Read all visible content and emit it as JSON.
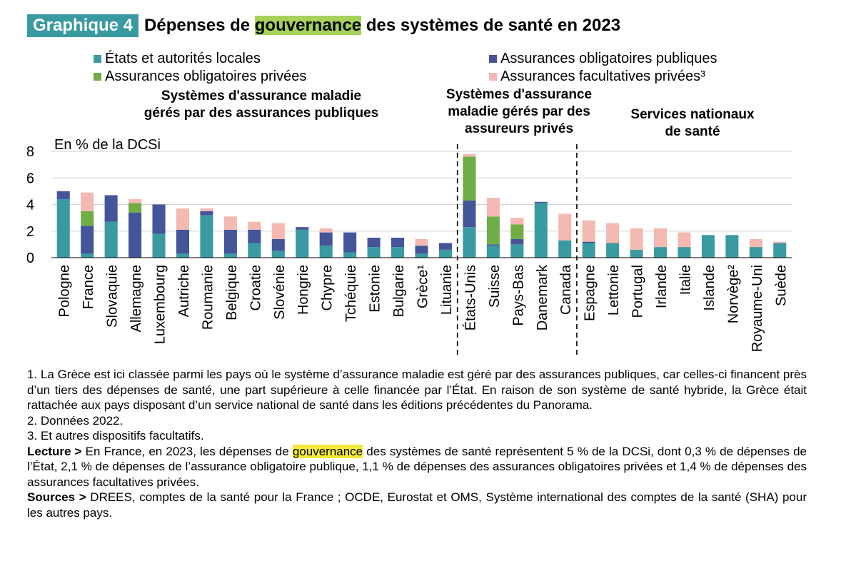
{
  "header": {
    "label": "Graphique 4",
    "title_before": "Dépenses de ",
    "title_highlight": "gouvernance",
    "title_after": " des systèmes de santé en 2023"
  },
  "colors": {
    "etats": "#3a9aa2",
    "obl_publiques": "#44559a",
    "obl_privees": "#70ad47",
    "facultatives": "#f4b9b2",
    "label_bg": "#3a9aa2",
    "title_highlight": "#a6d15a",
    "note_highlight": "#f5ea3b"
  },
  "chart_data": {
    "type": "bar",
    "stacked": true,
    "ylabel": "En % de la DCSi",
    "ylim": [
      0,
      8
    ],
    "yticks": [
      "0",
      "2",
      "4",
      "6",
      "8"
    ],
    "grid": true,
    "legend_position": "top",
    "groups": [
      {
        "title": [
          "Systèmes d'assurance maladie",
          "gérés par des assurances publiques"
        ]
      },
      {
        "title": [
          "Systèmes d'assurance",
          "maladie gérés par des",
          "assureurs privés"
        ]
      },
      {
        "title": [
          "Services nationaux",
          "de santé"
        ]
      }
    ],
    "categories": [
      "Pologne",
      "France",
      "Slovaquie",
      "Allemagne",
      "Luxembourg",
      "Autriche",
      "Roumanie",
      "Belgique",
      "Croatie",
      "Slovénie",
      "Hongrie",
      "Chypre",
      "Tchéquie",
      "Estonie",
      "Bulgarie",
      "Grèce¹",
      "Lituanie",
      "États-Unis",
      "Suisse",
      "Pays-Bas",
      "Danemark",
      "Canada",
      "Espagne",
      "Lettonie",
      "Portugal",
      "Irlande",
      "Italie",
      "Islande",
      "Norvège²",
      "Royaume-Uni",
      "Suède"
    ],
    "series": [
      {
        "name": "États et autorités locales",
        "values": [
          4.4,
          0.3,
          2.7,
          0.0,
          1.8,
          0.3,
          3.2,
          0.3,
          1.1,
          0.5,
          2.1,
          0.9,
          0.4,
          0.8,
          0.8,
          0.3,
          0.6,
          2.3,
          0.9,
          1.0,
          4.1,
          1.3,
          1.1,
          1.1,
          0.6,
          0.8,
          0.8,
          1.7,
          1.7,
          0.8,
          1.1
        ]
      },
      {
        "name": "Assurances obligatoires publiques",
        "values": [
          0.6,
          2.1,
          2.0,
          3.4,
          2.2,
          1.8,
          0.3,
          1.8,
          1.0,
          0.9,
          0.2,
          1.0,
          1.5,
          0.7,
          0.7,
          0.6,
          0.5,
          2.0,
          0.1,
          0.4,
          0.1,
          0.0,
          0.1,
          0.0,
          0.0,
          0.0,
          0.0,
          0.0,
          0.0,
          0.0,
          0.0
        ]
      },
      {
        "name": "Assurances obligatoires privées",
        "values": [
          0.0,
          1.1,
          0.0,
          0.7,
          0.0,
          0.0,
          0.0,
          0.0,
          0.0,
          0.0,
          0.0,
          0.0,
          0.0,
          0.0,
          0.0,
          0.0,
          0.0,
          3.3,
          2.1,
          1.1,
          0.0,
          0.0,
          0.0,
          0.0,
          0.0,
          0.0,
          0.0,
          0.0,
          0.0,
          0.0,
          0.0
        ]
      },
      {
        "name": "Assurances facultatives privées³",
        "values": [
          0.0,
          1.4,
          0.0,
          0.3,
          0.0,
          1.6,
          0.2,
          1.0,
          0.6,
          1.2,
          0.0,
          0.3,
          0.0,
          0.0,
          0.0,
          0.5,
          0.0,
          0.2,
          1.4,
          0.5,
          0.0,
          2.0,
          1.6,
          1.5,
          1.6,
          1.4,
          1.1,
          0.0,
          0.0,
          0.6,
          0.1
        ]
      }
    ]
  },
  "notes": {
    "note1": "1. La Grèce est ici classée parmi les pays où le système d’assurance maladie est géré par des assurances publiques, car celles-ci financent près d’un tiers des dépenses de santé, une part supérieure à celle financée par l’État. En raison de son système de santé hybride, la Grèce était rattachée aux pays disposant d’un service national de santé dans les éditions précédentes du Panorama.",
    "note2": "2. Données 2022.",
    "note3": "3. Et autres dispositifs facultatifs.",
    "lecture_label": "Lecture >",
    "lecture_before": " En France, en 2023, les dépenses de ",
    "lecture_highlight": "gouvernance",
    "lecture_after": " des systèmes de santé représentent 5 % de la DCSi, dont 0,3 % de dépenses de l’État, 2,1 % de dépenses de l’assurance obligatoire publique, 1,1 % de dépenses des assurances obligatoires privées et 1,4 % de dépenses des assurances facultatives privées.",
    "sources_label": "Sources >",
    "sources_text": " DREES, comptes de la santé pour la France ; OCDE, Eurostat et OMS, Système international des comptes de la santé (SHA) pour les autres pays."
  }
}
